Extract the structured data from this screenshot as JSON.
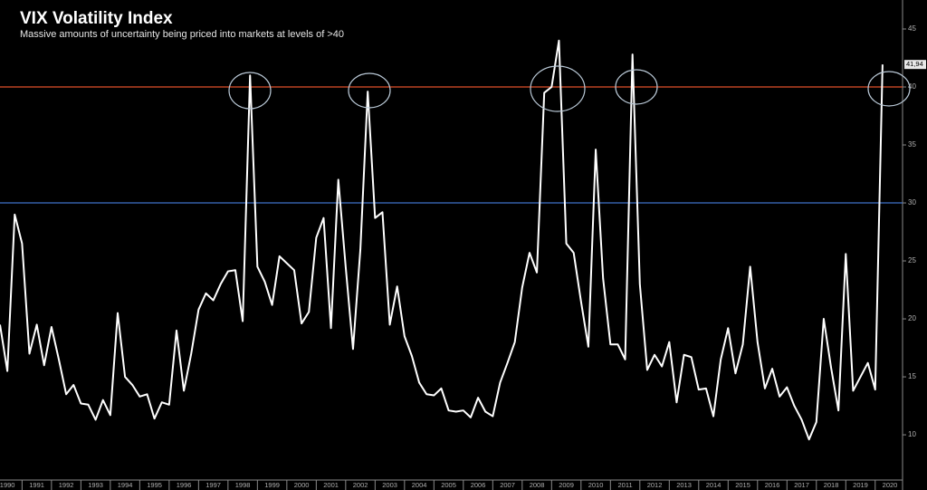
{
  "chart_data": {
    "type": "line",
    "title": "VIX Volatility Index",
    "subtitle": "Massive amounts of uncertainty being priced into markets at levels of >40",
    "x": [
      1990.25,
      1990.5,
      1990.75,
      1991,
      1991.25,
      1991.5,
      1991.75,
      1992,
      1992.25,
      1992.5,
      1992.75,
      1993,
      1993.25,
      1993.5,
      1993.75,
      1994,
      1994.25,
      1994.5,
      1994.75,
      1995,
      1995.25,
      1995.5,
      1995.75,
      1996,
      1996.25,
      1996.5,
      1996.75,
      1997,
      1997.25,
      1997.5,
      1997.75,
      1998,
      1998.25,
      1998.5,
      1998.75,
      1999,
      1999.25,
      1999.5,
      1999.75,
      2000,
      2000.25,
      2000.5,
      2000.75,
      2001,
      2001.25,
      2001.5,
      2001.75,
      2002,
      2002.25,
      2002.5,
      2002.75,
      2003,
      2003.25,
      2003.5,
      2003.75,
      2004,
      2004.25,
      2004.5,
      2004.75,
      2005,
      2005.25,
      2005.5,
      2005.75,
      2006,
      2006.25,
      2006.5,
      2006.75,
      2007,
      2007.25,
      2007.5,
      2007.75,
      2008,
      2008.25,
      2008.5,
      2008.75,
      2009,
      2009.25,
      2009.5,
      2009.75,
      2010,
      2010.25,
      2010.5,
      2010.75,
      2011,
      2011.25,
      2011.5,
      2011.75,
      2012,
      2012.25,
      2012.5,
      2012.75,
      2013,
      2013.25,
      2013.5,
      2013.75,
      2014,
      2014.25,
      2014.5,
      2014.75,
      2015,
      2015.25,
      2015.5,
      2015.75,
      2016,
      2016.25,
      2016.5,
      2016.75,
      2017,
      2017.25,
      2017.5,
      2017.75,
      2018,
      2018.25,
      2018.5,
      2018.75,
      2019,
      2019.25,
      2019.5,
      2019.75,
      2020,
      2020.25
    ],
    "series": [
      {
        "name": "VIX",
        "color": "#ffffff",
        "values": [
          19.5,
          15.5,
          29,
          26.5,
          17,
          19.5,
          16,
          19.3,
          16.5,
          13.5,
          14.3,
          12.7,
          12.6,
          11.3,
          13,
          11.7,
          20.5,
          15,
          14.3,
          13.3,
          13.5,
          11.4,
          12.8,
          12.6,
          19,
          13.8,
          17,
          20.8,
          22.2,
          21.6,
          23,
          24.1,
          24.2,
          19.8,
          41,
          24.5,
          23.2,
          21.2,
          25.4,
          24.8,
          24.2,
          19.6,
          20.6,
          27,
          28.7,
          19.2,
          32,
          24.5,
          17.4,
          26,
          39.6,
          28.7,
          29.2,
          19.5,
          22.8,
          18.5,
          16.8,
          14.5,
          13.5,
          13.4,
          14,
          12.1,
          12,
          12.1,
          11.5,
          13.2,
          12,
          11.6,
          14.5,
          16.2,
          18,
          22.7,
          25.7,
          24,
          39.5,
          40,
          44,
          26.5,
          25.7,
          21.5,
          17.6,
          34.6,
          23.5,
          17.8,
          17.8,
          16.5,
          42.8,
          23,
          15.6,
          16.9,
          15.9,
          18,
          12.8,
          16.9,
          16.7,
          13.9,
          14,
          11.6,
          16.5,
          19.2,
          15.3,
          17.8,
          24.5,
          18,
          14,
          15.7,
          13.3,
          14.1,
          12.5,
          11.3,
          9.6,
          11.1,
          20,
          15.8,
          12.1,
          25.6,
          13.8,
          15,
          16.2,
          13.9,
          41.94
        ]
      }
    ],
    "last_label": "41,94",
    "reference_lines": [
      {
        "value": 40,
        "color": "#e0502a"
      },
      {
        "value": 30,
        "color": "#3f72c8"
      }
    ],
    "xlim": [
      1990.25,
      2020.93
    ],
    "xticks": [
      1990,
      1991,
      1992,
      1993,
      1994,
      1995,
      1996,
      1997,
      1998,
      1999,
      2000,
      2001,
      2002,
      2003,
      2004,
      2005,
      2006,
      2007,
      2008,
      2009,
      2010,
      2011,
      2012,
      2013,
      2014,
      2015,
      2016,
      2017,
      2018,
      2019,
      2020
    ],
    "ylim": [
      6.1,
      47.5
    ],
    "yticks": [
      10,
      15,
      20,
      25,
      30,
      35,
      40,
      45
    ],
    "axis_side": "right"
  }
}
